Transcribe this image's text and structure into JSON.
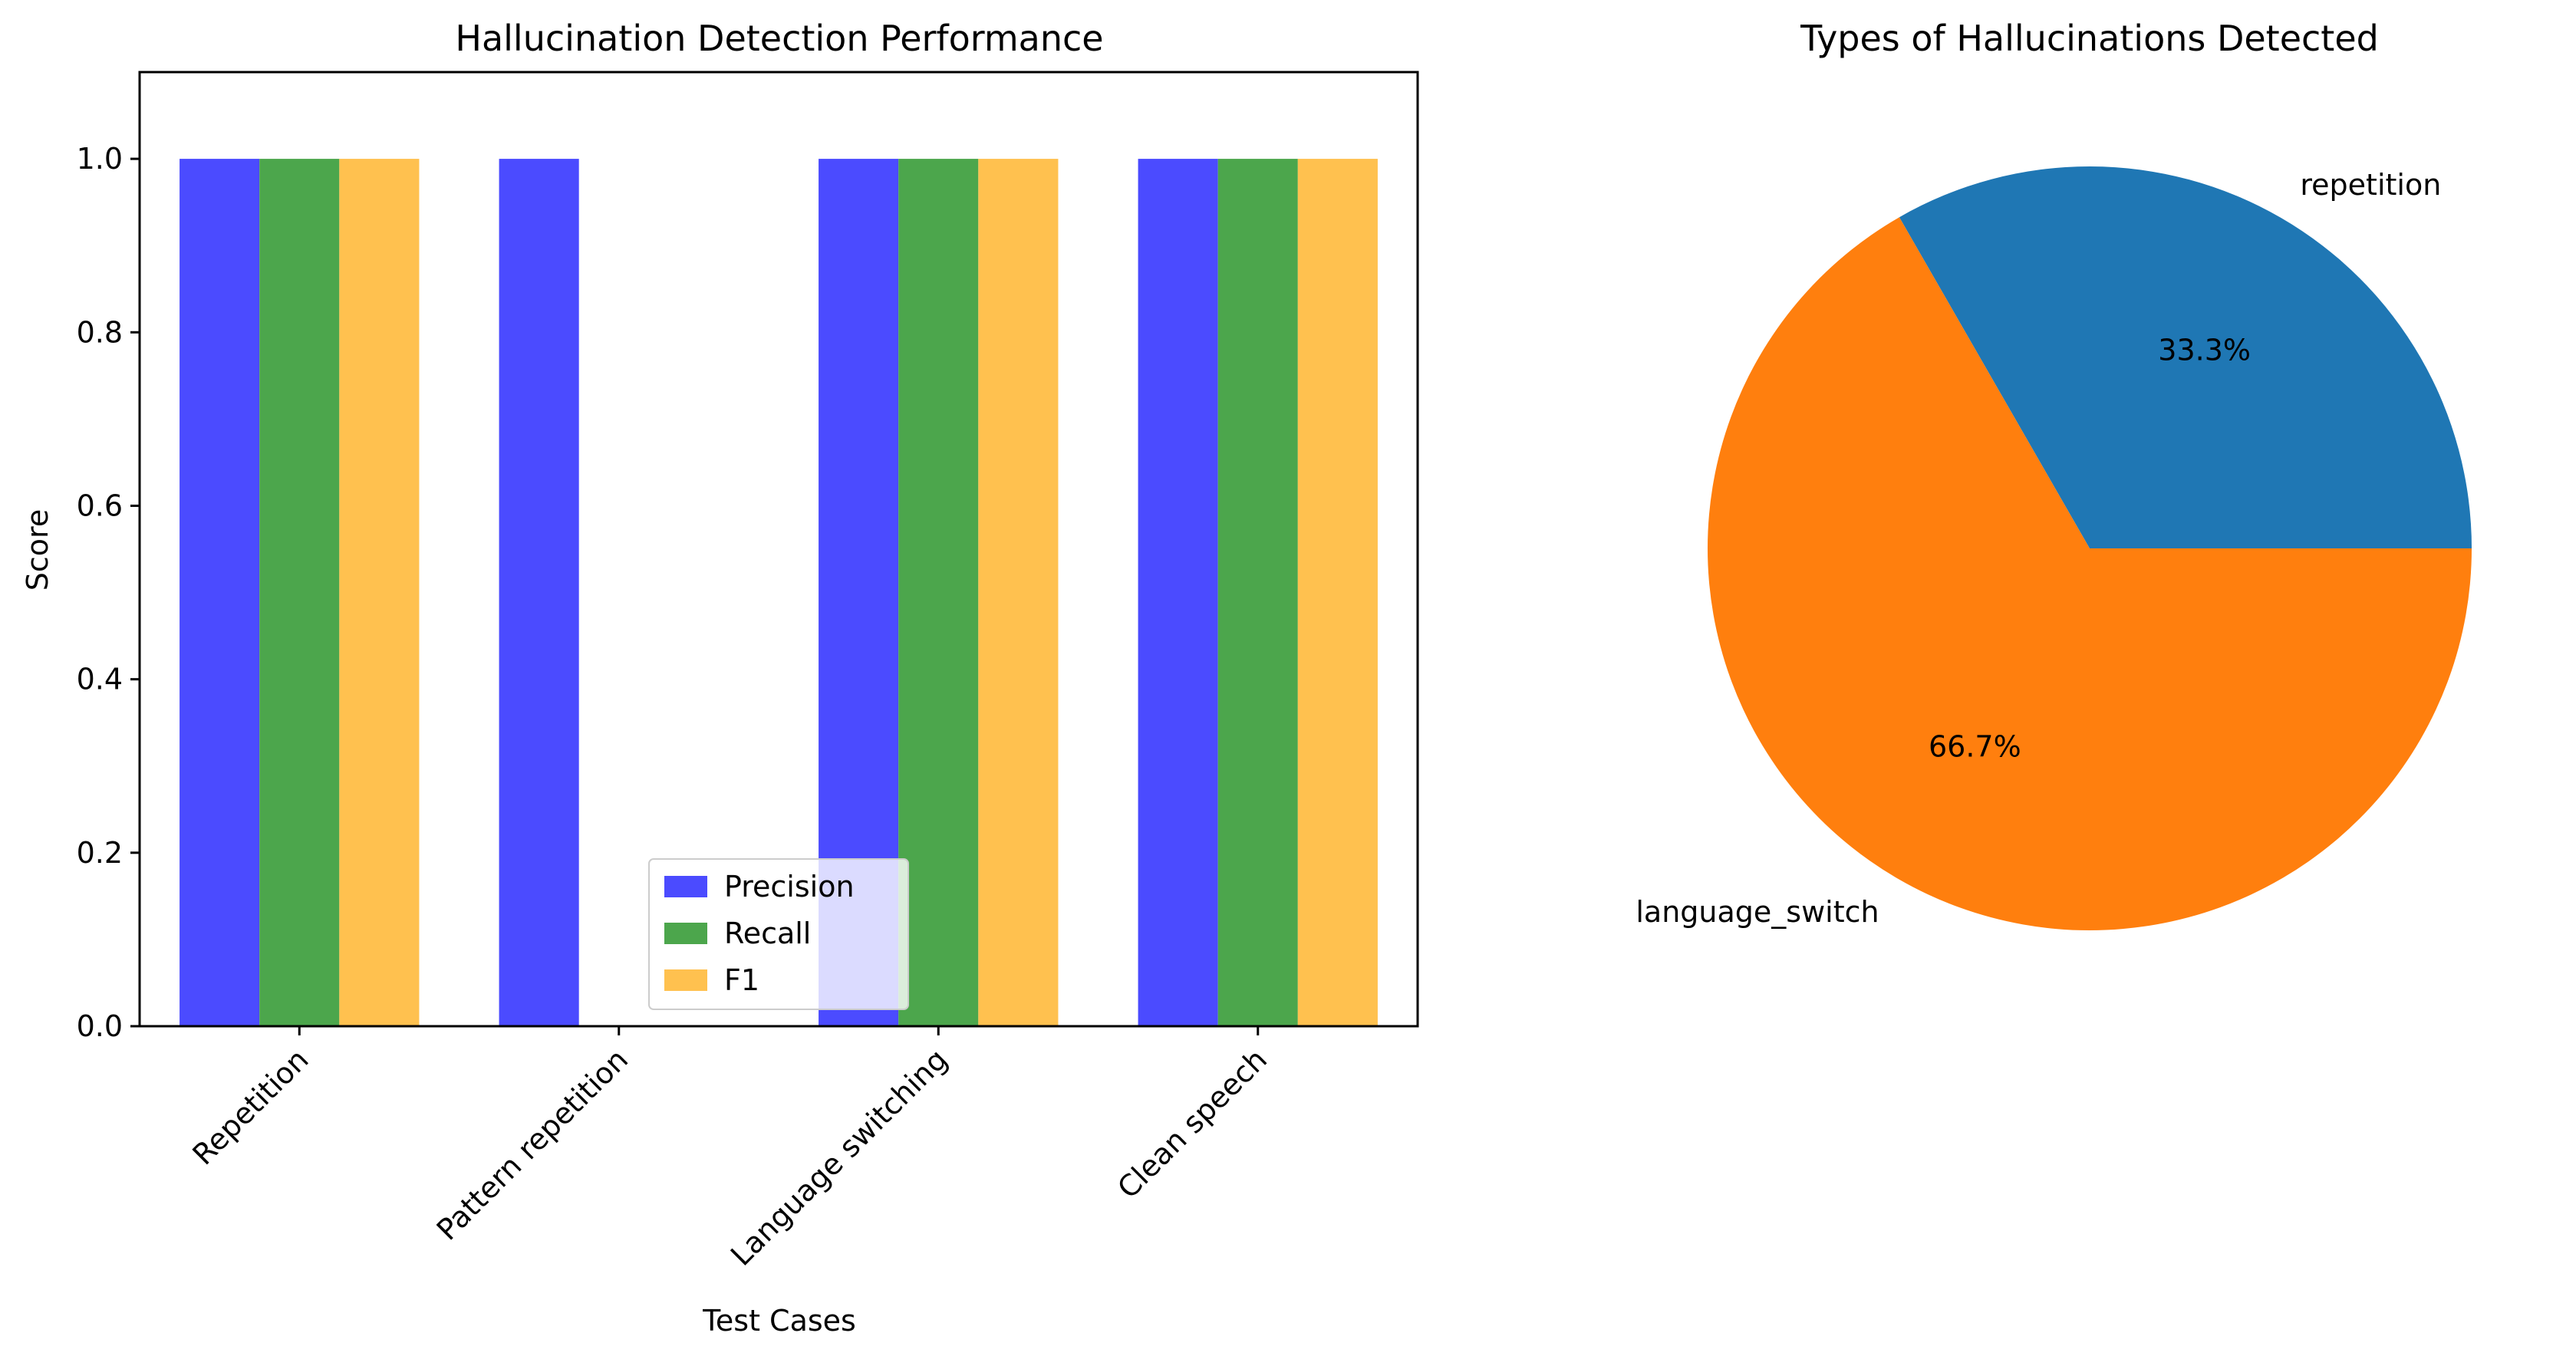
{
  "chart_data": [
    {
      "type": "bar",
      "title": "Hallucination Detection Performance",
      "xlabel": "Test Cases",
      "ylabel": "Score",
      "ylim": [
        0,
        1.1
      ],
      "yticks": [
        "0.0",
        "0.2",
        "0.4",
        "0.6",
        "0.8",
        "1.0"
      ],
      "categories": [
        "Repetition",
        "Pattern repetition",
        "Language switching",
        "Clean speech"
      ],
      "series": [
        {
          "name": "Precision",
          "values": [
            1.0,
            1.0,
            1.0,
            1.0
          ],
          "color": "#4b4bff"
        },
        {
          "name": "Recall",
          "values": [
            1.0,
            0.0,
            1.0,
            1.0
          ],
          "color": "#4ca64c"
        },
        {
          "name": "F1",
          "values": [
            1.0,
            0.0,
            1.0,
            1.0
          ],
          "color": "#ffc14f"
        }
      ],
      "legend_position": "lower center",
      "grid": false
    },
    {
      "type": "pie",
      "title": "Types of Hallucinations Detected",
      "labels": [
        "repetition",
        "language_switch"
      ],
      "values": [
        33.3,
        66.7
      ],
      "percent_labels": [
        "33.3%",
        "66.7%"
      ],
      "colors": [
        "#1f77b4",
        "#ff7f0e"
      ]
    }
  ]
}
